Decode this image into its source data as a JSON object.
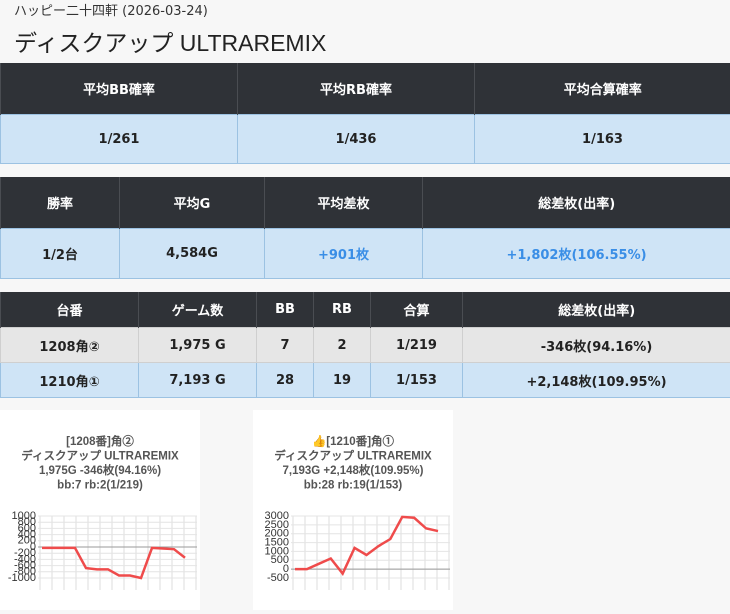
{
  "header": {
    "subtitle": "ハッピー二十四軒 (2026-03-24)",
    "title": "ディスクアップ ULTRAREMIX"
  },
  "summary1": {
    "columns": [
      "平均BB確率",
      "平均RB確率",
      "平均合算確率"
    ],
    "row": [
      "1/261",
      "1/436",
      "1/163"
    ]
  },
  "summary2": {
    "columns": [
      "勝率",
      "平均G",
      "平均差枚",
      "総差枚(出率)"
    ],
    "row": [
      "1/2台",
      "4,584G",
      "+901枚",
      "+1,802枚(106.55%)"
    ]
  },
  "machines": {
    "columns": [
      "台番",
      "ゲーム数",
      "BB",
      "RB",
      "合算",
      "総差枚(出率)"
    ],
    "rows": [
      [
        "1208角②",
        "1,975 G",
        "7",
        "2",
        "1/219",
        "-346枚(94.16%)"
      ],
      [
        "1210角①",
        "7,193 G",
        "28",
        "19",
        "1/153",
        "+2,148枚(109.95%)"
      ]
    ]
  },
  "charts": [
    {
      "type": "line",
      "title_lines": [
        "[1208番]角②",
        "ディスクアップ ULTRAREMIX",
        "1,975G -346枚(94.16%)",
        "bb:7 rb:2(1/219)"
      ],
      "color": "#ef4b4b",
      "values": [
        -30,
        -30,
        -30,
        -30,
        -680,
        -720,
        -720,
        -920,
        -920,
        -1000,
        -30,
        -50,
        -70,
        -346
      ],
      "ylim": [
        -1000,
        1000
      ],
      "yticks": [
        -1000,
        -800,
        -600,
        -400,
        -200,
        0,
        200,
        400,
        600,
        800,
        1000
      ]
    },
    {
      "type": "line",
      "title_lines": [
        "👍[1210番]角①",
        "ディスクアップ ULTRAREMIX",
        "7,193G +2,148枚(109.95%)",
        "bb:28 rb:19(1/153)"
      ],
      "color": "#ef4b4b",
      "values": [
        0,
        0,
        300,
        600,
        -250,
        1200,
        800,
        1300,
        1700,
        2950,
        2900,
        2300,
        2148
      ],
      "ylim": [
        -500,
        3000
      ],
      "yticks": [
        -500,
        0,
        500,
        1000,
        1500,
        2000,
        2500,
        3000
      ]
    }
  ]
}
